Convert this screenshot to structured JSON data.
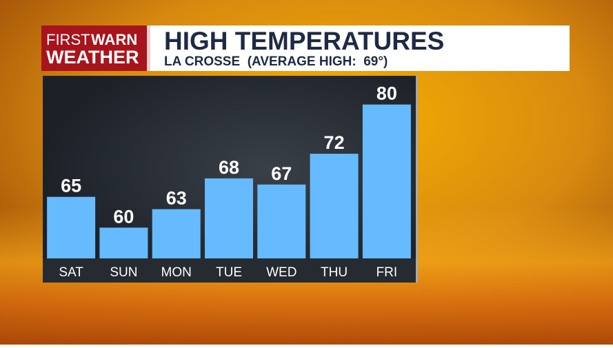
{
  "brand": {
    "first": "FIRST",
    "warn": "WARN",
    "weather": "WEATHER"
  },
  "chart_data": {
    "type": "bar",
    "title": "HIGH TEMPERATURES",
    "subtitle": "LA CROSSE  (AVERAGE HIGH:  69°)",
    "categories": [
      "SAT",
      "SUN",
      "MON",
      "TUE",
      "WED",
      "THU",
      "FRI"
    ],
    "values": [
      65,
      60,
      63,
      68,
      67,
      72,
      80
    ],
    "color": "#66bbff",
    "ylim": [
      55,
      85
    ]
  }
}
